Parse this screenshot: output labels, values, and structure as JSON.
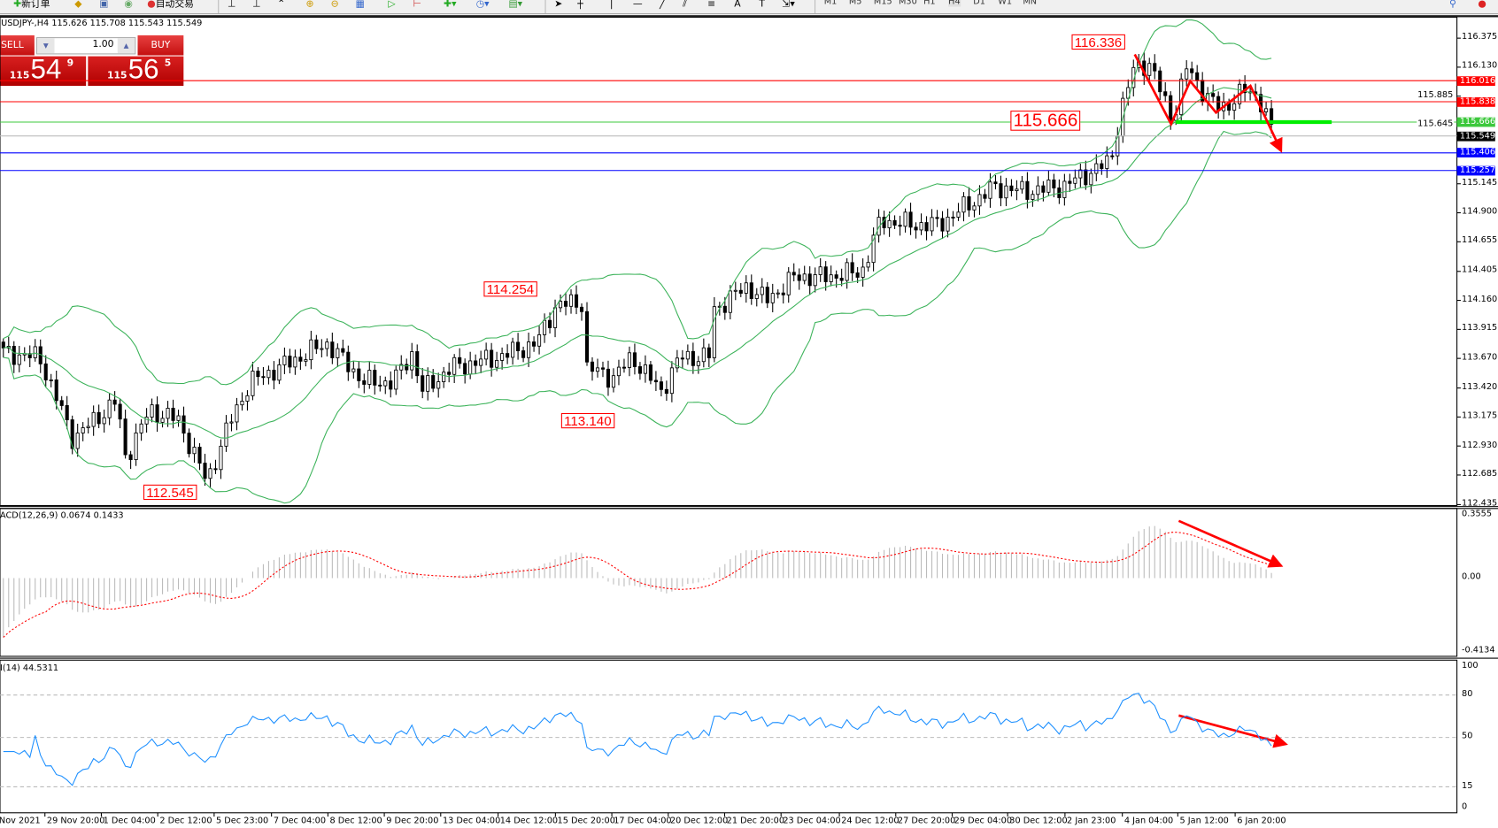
{
  "toolbar": {
    "new_order": "新订单",
    "auto_trading": "自动交易",
    "timeframes": [
      "M1",
      "M5",
      "M15",
      "M30",
      "H1",
      "H4",
      "D1",
      "W1",
      "MN"
    ],
    "active_timeframe": "H4",
    "text_tool": "A",
    "label_tool": "T"
  },
  "chart": {
    "header": "USDJPY-,H4  115.626 115.708 115.543 115.549"
  },
  "one_click": {
    "sell": "SELL",
    "buy": "BUY",
    "lots": "1.00",
    "bid_big": "115",
    "bid_main": "54",
    "bid_frac": "9",
    "ask_big": "115",
    "ask_main": "56",
    "ask_frac": "5"
  },
  "colors": {
    "bull_body": "#ffffff",
    "bear_body": "#000000",
    "bands": "#3cb35a",
    "macd_signal": "#ff0000",
    "rsi": "#1e90ff",
    "annotation": "#ff0000",
    "support": "#00ee00"
  },
  "chart_data": [
    {
      "type": "candlestick",
      "symbol": "USDJPY",
      "timeframe": "H4",
      "ylim": [
        112.435,
        116.375
      ],
      "yticks": [
        "116.375",
        "116.130",
        "115.885",
        "115.645",
        "115.145",
        "114.900",
        "114.655",
        "114.405",
        "114.160",
        "113.915",
        "113.670",
        "113.420",
        "113.175",
        "112.930",
        "112.685",
        "112.435"
      ],
      "xticks": [
        "Nov 2021",
        "29 Nov 20:00",
        "1 Dec 04:00",
        "2 Dec 12:00",
        "5 Dec 23:00",
        "7 Dec 04:00",
        "8 Dec 12:00",
        "9 Dec 20:00",
        "13 Dec 04:00",
        "14 Dec 12:00",
        "15 Dec 20:00",
        "17 Dec 04:00",
        "20 Dec 12:00",
        "21 Dec 20:00",
        "23 Dec 04:00",
        "24 Dec 12:00",
        "27 Dec 20:00",
        "29 Dec 04:00",
        "30 Dec 12:00",
        "2 Jan 23:00",
        "4 Jan 04:00",
        "5 Jan 12:00",
        "6 Jan 20:00"
      ],
      "approx_close_path": [
        [
          0,
          113.72
        ],
        [
          40,
          113.68
        ],
        [
          75,
          112.99
        ],
        [
          120,
          113.31
        ],
        [
          130,
          112.83
        ],
        [
          155,
          113.23
        ],
        [
          185,
          113.15
        ],
        [
          215,
          112.63
        ],
        [
          240,
          113.15
        ],
        [
          260,
          113.47
        ],
        [
          300,
          113.63
        ],
        [
          340,
          113.8
        ],
        [
          380,
          113.47
        ],
        [
          410,
          113.47
        ],
        [
          430,
          113.72
        ],
        [
          440,
          113.39
        ],
        [
          470,
          113.59
        ],
        [
          520,
          113.68
        ],
        [
          560,
          113.8
        ],
        [
          580,
          114.12
        ],
        [
          607,
          114.14
        ],
        [
          612,
          113.59
        ],
        [
          640,
          113.51
        ],
        [
          660,
          113.68
        ],
        [
          690,
          113.39
        ],
        [
          710,
          113.68
        ],
        [
          740,
          113.68
        ],
        [
          745,
          114.08
        ],
        [
          780,
          114.28
        ],
        [
          800,
          114.16
        ],
        [
          830,
          114.36
        ],
        [
          860,
          114.36
        ],
        [
          900,
          114.4
        ],
        [
          920,
          114.84
        ],
        [
          950,
          114.8
        ],
        [
          980,
          114.8
        ],
        [
          1010,
          114.96
        ],
        [
          1040,
          115.12
        ],
        [
          1070,
          115.08
        ],
        [
          1110,
          115.12
        ],
        [
          1140,
          115.25
        ],
        [
          1160,
          115.33
        ],
        [
          1170,
          115.73
        ],
        [
          1185,
          116.13
        ],
        [
          1200,
          116.17
        ],
        [
          1225,
          115.69
        ],
        [
          1240,
          116.13
        ],
        [
          1260,
          115.89
        ],
        [
          1275,
          115.77
        ],
        [
          1300,
          115.93
        ],
        [
          1315,
          115.89
        ],
        [
          1330,
          115.57
        ]
      ],
      "indicator": "Bollinger Bands",
      "levels": [
        {
          "price": "116.016",
          "color": "#ff0000"
        },
        {
          "price": "115.838",
          "color": "#ff0000"
        },
        {
          "price": "115.666",
          "color": "#3cc83c"
        },
        {
          "price": "115.549",
          "color": "#000000",
          "kind": "bid"
        },
        {
          "price": "115.406",
          "color": "#0000ff"
        },
        {
          "price": "115.257",
          "color": "#0000ff"
        }
      ],
      "price_labels": [
        "116.336",
        "115.666",
        "114.254",
        "113.140",
        "112.545"
      ]
    },
    {
      "type": "bar",
      "title": "ACD(12,26,9) 0.0674 0.1433",
      "yticks": [
        "0.3555",
        "0.00",
        "-0.4134"
      ],
      "ylim": [
        -0.4134,
        0.3555
      ]
    },
    {
      "type": "line",
      "title": "I(14) 44.5311",
      "yticks": [
        "100",
        "80",
        "50",
        "15",
        "0"
      ],
      "ylim": [
        0,
        100
      ],
      "levels": [
        80,
        50,
        15
      ]
    }
  ]
}
